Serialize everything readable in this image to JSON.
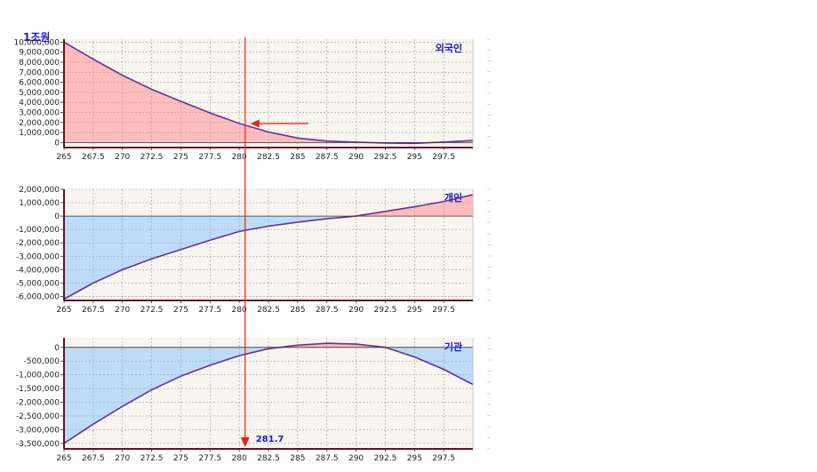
{
  "unit_label": "1조원",
  "annotation": {
    "value_label": "281.7",
    "x_value": 280.5
  },
  "colors": {
    "positive_fill": "#ffbcbc",
    "negative_fill": "#bcdcf8",
    "plot_bg": "#f7f5ee",
    "line_blue": "#2f3fd6",
    "line_red": "#d0182a",
    "title": "#1a1acc",
    "arrow": "#e8221c"
  },
  "chart_data": [
    {
      "type": "area",
      "title": "외국인",
      "xlim": [
        265,
        300
      ],
      "ylim": [
        -500000,
        10300000
      ],
      "x_ticks": [
        "265",
        "267.5",
        "270",
        "272.5",
        "275",
        "277.5",
        "280",
        "282.5",
        "285",
        "287.5",
        "290",
        "292.5",
        "295",
        "297.5"
      ],
      "y_ticks": [
        "10,000,000",
        "9,000,000",
        "8,000,000",
        "7,000,000",
        "6,000,000",
        "5,000,000",
        "4,000,000",
        "3,000,000",
        "2,000,000",
        "1,000,000",
        "0"
      ],
      "x": [
        265,
        267.5,
        270,
        272.5,
        275,
        277.5,
        280,
        282.5,
        285,
        287.5,
        290,
        292.5,
        295,
        297.5,
        300
      ],
      "series": [
        {
          "values": [
            10000000,
            8300000,
            6700000,
            5300000,
            4100000,
            2950000,
            1900000,
            1050000,
            450000,
            150000,
            40000,
            -50000,
            -80000,
            50000,
            200000
          ]
        }
      ]
    },
    {
      "type": "area",
      "title": "개인",
      "xlim": [
        265,
        300
      ],
      "ylim": [
        -6300000,
        2000000
      ],
      "x_ticks": [
        "265",
        "267.5",
        "270",
        "272.5",
        "275",
        "277.5",
        "280",
        "282.5",
        "285",
        "287.5",
        "290",
        "292.5",
        "295",
        "297.5"
      ],
      "y_ticks": [
        "2,000,000",
        "1,000,000",
        "0",
        "-1,000,000",
        "-2,000,000",
        "-3,000,000",
        "-4,000,000",
        "-5,000,000",
        "-6,000,000"
      ],
      "x": [
        265,
        267.5,
        270,
        272.5,
        275,
        277.5,
        280,
        282.5,
        285,
        287.5,
        290,
        292.5,
        295,
        297.5,
        300
      ],
      "series": [
        {
          "values": [
            -6200000,
            -5000000,
            -4000000,
            -3200000,
            -2500000,
            -1800000,
            -1150000,
            -750000,
            -450000,
            -200000,
            0,
            350000,
            700000,
            1100000,
            1600000
          ]
        }
      ]
    },
    {
      "type": "area",
      "title": "기관",
      "xlim": [
        265,
        300
      ],
      "ylim": [
        -3700000,
        350000
      ],
      "x_ticks": [
        "265",
        "267.5",
        "270",
        "272.5",
        "275",
        "277.5",
        "280",
        "282.5",
        "285",
        "287.5",
        "290",
        "292.5",
        "295",
        "297.5"
      ],
      "y_ticks": [
        "0",
        "-500,000",
        "-1,000,000",
        "-1,500,000",
        "-2,000,000",
        "-2,500,000",
        "-3,000,000",
        "-3,500,000"
      ],
      "x": [
        265,
        267.5,
        270,
        272.5,
        275,
        277.5,
        280,
        282.5,
        285,
        287.5,
        290,
        292.5,
        295,
        297.5,
        300
      ],
      "series": [
        {
          "values": [
            -3500000,
            -2800000,
            -2150000,
            -1550000,
            -1050000,
            -650000,
            -300000,
            -50000,
            80000,
            150000,
            120000,
            0,
            -350000,
            -800000,
            -1350000
          ]
        }
      ]
    }
  ]
}
